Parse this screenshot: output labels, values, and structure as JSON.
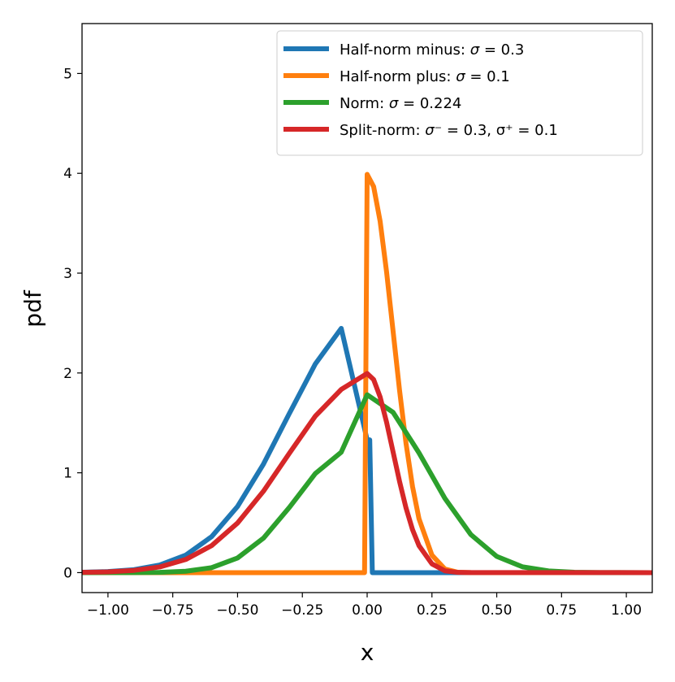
{
  "chart_data": {
    "type": "line",
    "xlabel": "x",
    "ylabel": "pdf",
    "xlim": [
      -1.1,
      1.1
    ],
    "ylim": [
      -0.2,
      5.5
    ],
    "x_ticks": [
      -1.0,
      -0.75,
      -0.5,
      -0.25,
      0.0,
      0.25,
      0.5,
      0.75,
      1.0
    ],
    "x_tick_labels": [
      "−1.00",
      "−0.75",
      "−0.50",
      "−0.25",
      "0.00",
      "0.25",
      "0.50",
      "0.75",
      "1.00"
    ],
    "y_ticks": [
      0,
      1,
      2,
      3,
      4,
      5
    ],
    "y_tick_labels": [
      "0",
      "1",
      "2",
      "3",
      "4",
      "5"
    ],
    "grid": false,
    "legend_position": "upper-right",
    "series": [
      {
        "name": "Half-norm minus: σ = 0.3",
        "color": "#1f77b4",
        "x": [
          -1.1,
          -1.0,
          -0.9,
          -0.8,
          -0.7,
          -0.6,
          -0.5,
          -0.4,
          -0.3,
          -0.2,
          -0.1,
          0.0,
          0.01,
          0.02,
          1.1
        ],
        "y": [
          0.0031,
          0.0103,
          0.0295,
          0.0761,
          0.1752,
          0.3604,
          0.6624,
          1.0873,
          1.5949,
          2.0899,
          2.4466,
          1.3298,
          1.3298,
          0.0,
          0.0
        ]
      },
      {
        "name": "Half-norm plus: σ = 0.1",
        "color": "#ff7f0e",
        "x": [
          -1.1,
          -0.01,
          0.0,
          0.025,
          0.05,
          0.075,
          0.1,
          0.125,
          0.15,
          0.175,
          0.2,
          0.25,
          0.3,
          0.35,
          0.4,
          0.5,
          1.1
        ],
        "y": [
          0.0,
          0.0,
          3.989,
          3.867,
          3.521,
          3.011,
          2.42,
          1.826,
          1.295,
          0.863,
          0.54,
          0.175,
          0.0355,
          0.0035,
          0.0003,
          0.0,
          0.0
        ]
      },
      {
        "name": "Norm: σ = 0.224",
        "color": "#2ca02c",
        "x": [
          -1.1,
          -0.9,
          -0.8,
          -0.7,
          -0.6,
          -0.5,
          -0.4,
          -0.3,
          -0.2,
          -0.1,
          0.0,
          0.1,
          0.2,
          0.3,
          0.4,
          0.5,
          0.6,
          0.7,
          0.8,
          0.9,
          1.1
        ],
        "y": [
          0.0,
          0.0005,
          0.0029,
          0.0135,
          0.0496,
          0.1466,
          0.3455,
          0.6536,
          0.9922,
          1.2065,
          1.7815,
          1.6057,
          1.1998,
          0.7434,
          0.3811,
          0.1623,
          0.0574,
          0.0169,
          0.0041,
          0.0008,
          0.0
        ]
      },
      {
        "name": "Split-norm: σ⁻ = 0.3, σ⁺ = 0.1",
        "color": "#d62728",
        "x": [
          -1.1,
          -1.0,
          -0.9,
          -0.8,
          -0.7,
          -0.6,
          -0.5,
          -0.4,
          -0.3,
          -0.2,
          -0.1,
          0.0,
          0.025,
          0.05,
          0.075,
          0.1,
          0.125,
          0.15,
          0.175,
          0.2,
          0.25,
          0.3,
          0.35,
          0.4,
          1.1
        ],
        "y": [
          0.0025,
          0.0077,
          0.0222,
          0.0571,
          0.1314,
          0.2703,
          0.4967,
          0.8155,
          1.1963,
          1.5675,
          1.8349,
          1.9947,
          1.9336,
          1.7603,
          1.5056,
          1.2099,
          0.9132,
          0.6476,
          0.4314,
          0.27,
          0.0876,
          0.0178,
          0.0022,
          0.0002,
          0.0
        ]
      }
    ]
  },
  "legend": {
    "entries": [
      {
        "prefix": "Half-norm minus: ",
        "sym": "σ",
        "rest": " = 0.3"
      },
      {
        "prefix": "Half-norm plus: ",
        "sym": "σ",
        "rest": " = 0.1"
      },
      {
        "prefix": "Norm: ",
        "sym": "σ",
        "rest": " = 0.224"
      },
      {
        "prefix": "Split-norm: ",
        "sym": "σ",
        "rest": "⁻ = 0.3, σ⁺ = 0.1"
      }
    ]
  }
}
